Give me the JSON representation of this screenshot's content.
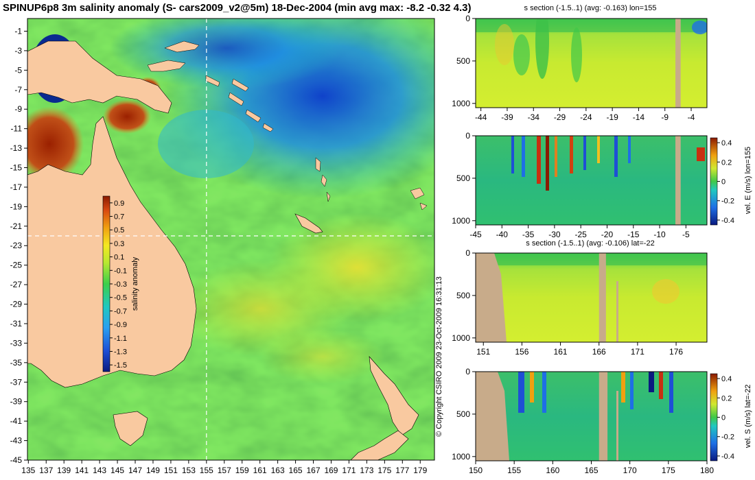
{
  "title": "SPINUP6p8 3m salinity anomaly (S- cars2009_v2@5m) 18-Dec-2004 (min avg max: -8.2 -0.32 4.3)",
  "copyright": "© Copyright CSIRO 2009  23-Oct-2009 16:31:13",
  "colors": {
    "land_map": "#f9c9a0",
    "land_section": "#c8ab8a"
  },
  "chart_data": [
    {
      "id": "map",
      "type": "heatmap",
      "title": "",
      "xlabel": "",
      "ylabel": "",
      "x_ticks": [
        135,
        137,
        139,
        141,
        143,
        145,
        147,
        149,
        151,
        153,
        155,
        157,
        159,
        161,
        163,
        165,
        167,
        169,
        171,
        173,
        175,
        177,
        179
      ],
      "y_ticks": [
        -1,
        -3,
        -5,
        -7,
        -9,
        -11,
        -13,
        -15,
        -17,
        -19,
        -21,
        -23,
        -25,
        -27,
        -29,
        -31,
        -33,
        -35,
        -37,
        -39,
        -41,
        -43,
        -45
      ],
      "xlim": [
        134.9,
        180.6
      ],
      "ylim": [
        -45,
        0.3
      ],
      "crosshair": {
        "lon": 155,
        "lat": -22
      },
      "colorbar": {
        "label": "salinity anomaly",
        "ticks": [
          "0.9",
          "0.7",
          "0.5",
          "0.3",
          "0.1",
          "-0.1",
          "-0.3",
          "-0.5",
          "-0.7",
          "-0.9",
          "-1.1",
          "-1.3",
          "-1.5"
        ],
        "range": [
          -1.6,
          1.0
        ]
      }
    },
    {
      "id": "s-section-lon",
      "type": "heatmap",
      "title": "s section (-1.5..1) (avg: -0.163) lon=155",
      "ylabel": "",
      "x_ticks": [
        "-44",
        "-39",
        "-34",
        "-29",
        "-24",
        "-19",
        "-14",
        "-9",
        "-4"
      ],
      "x_values": [
        -44,
        -39,
        -34,
        -29,
        -24,
        -19,
        -14,
        -9,
        -4
      ],
      "y_ticks": [
        "0",
        "500",
        "1000"
      ],
      "y_values": [
        0,
        500,
        1000
      ],
      "xlim": [
        -45,
        -1
      ],
      "ylim": [
        1050,
        0
      ],
      "land_x": [
        [
          -7.0,
          -6.0
        ]
      ]
    },
    {
      "id": "vel-e-section",
      "type": "heatmap",
      "title": "",
      "ylabel": "vel. E (m/s) lon=155",
      "x_ticks": [
        "-45",
        "-40",
        "-35",
        "-30",
        "-25",
        "-20",
        "-15",
        "-10",
        "-5"
      ],
      "x_values": [
        -45,
        -40,
        -35,
        -30,
        -25,
        -20,
        -15,
        -10,
        -5
      ],
      "y_ticks": [
        "0",
        "500",
        "1000"
      ],
      "y_values": [
        0,
        500,
        1000
      ],
      "xlim": [
        -45,
        -1
      ],
      "ylim": [
        1050,
        0
      ],
      "land_x": [
        [
          -7.0,
          -6.0
        ]
      ],
      "colorbar": {
        "ticks": [
          "0.4",
          "0.2",
          "0",
          "-0.2",
          "-0.4"
        ],
        "range": [
          -0.45,
          0.45
        ]
      }
    },
    {
      "id": "s-section-lat",
      "type": "heatmap",
      "title": "s section (-1.5..1) (avg: -0.106) lat=-22",
      "ylabel": "",
      "x_ticks": [
        "151",
        "156",
        "161",
        "166",
        "171",
        "176"
      ],
      "x_values": [
        151,
        156,
        161,
        166,
        171,
        176
      ],
      "y_ticks": [
        "0",
        "500",
        "1000"
      ],
      "y_values": [
        0,
        500,
        1000
      ],
      "xlim": [
        150,
        180
      ],
      "ylim": [
        1050,
        0
      ],
      "land_x": [
        [
          166.0,
          166.9
        ]
      ]
    },
    {
      "id": "vel-s-section",
      "type": "heatmap",
      "title": "",
      "ylabel": "vel. S (m/s) lat=-22",
      "x_ticks": [
        "150",
        "155",
        "160",
        "165",
        "170",
        "175",
        "180"
      ],
      "x_values": [
        150,
        155,
        160,
        165,
        170,
        175,
        180
      ],
      "y_ticks": [
        "0",
        "500",
        "1000"
      ],
      "y_values": [
        0,
        500,
        1000
      ],
      "xlim": [
        150,
        180
      ],
      "ylim": [
        1050,
        0
      ],
      "land_x": [
        [
          166.0,
          167.1
        ]
      ],
      "colorbar": {
        "ticks": [
          "0.4",
          "0.2",
          "0",
          "-0.2",
          "-0.4"
        ],
        "range": [
          -0.45,
          0.45
        ]
      }
    }
  ]
}
